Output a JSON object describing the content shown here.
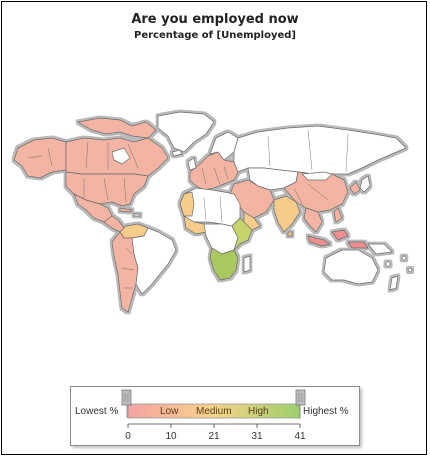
{
  "title": "Are you employed now",
  "subtitle": "Percentage of [Unemployed]",
  "legend": {
    "low_end_label": "Lowest %",
    "high_end_label": "Highest %",
    "band_labels": [
      "Low",
      "Medium",
      "High"
    ],
    "ticks": [
      "0",
      "10",
      "21",
      "31",
      "41"
    ],
    "range": [
      0,
      41
    ],
    "gradient_colors": [
      "#f4a2a2",
      "#f7d38b",
      "#9ccf6b"
    ]
  },
  "map": {
    "no_data_color": "#ffffff",
    "border_color": "#6a6a6a",
    "shadow_color": "#b9b9b9",
    "shaded_regions": [
      {
        "region": "north-america",
        "color": "#f4b4a4"
      },
      {
        "region": "mexico",
        "color": "#f4b4a4"
      },
      {
        "region": "central-america",
        "color": "#f4b4a4"
      },
      {
        "region": "venezuela",
        "color": "#f7cc8a"
      },
      {
        "region": "south-america-west",
        "color": "#f4b4a4"
      },
      {
        "region": "brazil",
        "color": "#ffffff"
      },
      {
        "region": "europe",
        "color": "#f4b4a4"
      },
      {
        "region": "russia",
        "color": "#ffffff"
      },
      {
        "region": "north-africa-west",
        "color": "#f7cc8a"
      },
      {
        "region": "east-africa",
        "color": "#c6d26c"
      },
      {
        "region": "southern-africa",
        "color": "#a9c860"
      },
      {
        "region": "middle-east",
        "color": "#f4b4a4"
      },
      {
        "region": "india",
        "color": "#f7cc8a"
      },
      {
        "region": "china",
        "color": "#f4b4a4"
      },
      {
        "region": "southeast-asia",
        "color": "#ee8e8e"
      },
      {
        "region": "australia",
        "color": "#ffffff"
      }
    ]
  }
}
